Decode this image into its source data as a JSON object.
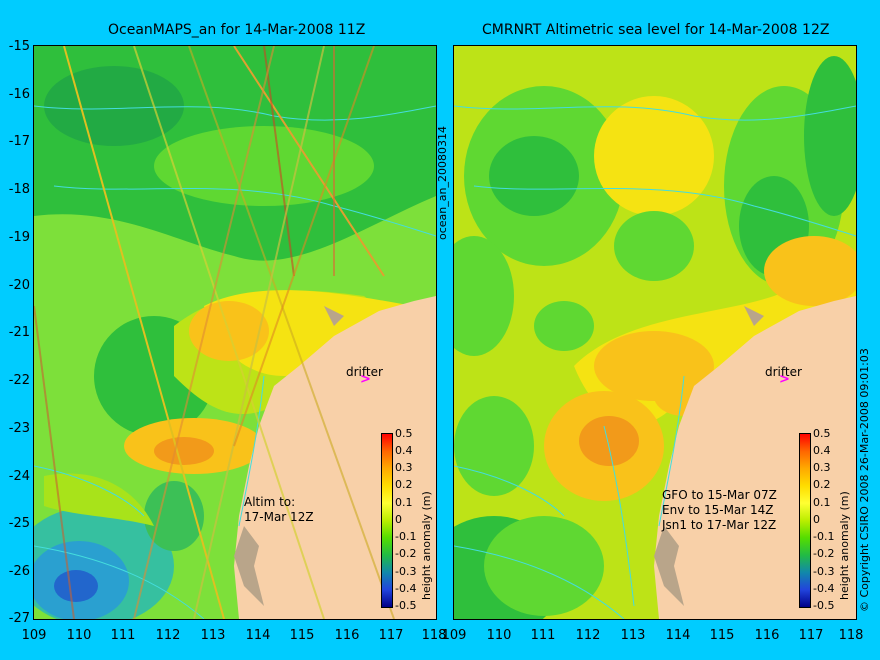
{
  "left_panel": {
    "title": "OceanMAPS_an for 14-Mar-2008 11Z",
    "altim_text": [
      "Altim to:",
      "17-Mar 12Z"
    ],
    "drifter_label": "drifter",
    "colorbar_label": "height anomaly (m)"
  },
  "right_panel": {
    "title": "CMRNRT Altimetric sea level  for 14-Mar-2008 12Z",
    "satellite_text": [
      "GFO to 15-Mar 07Z",
      "Env to 15-Mar 14Z",
      "Jsn1 to 17-Mar 12Z"
    ],
    "drifter_label": "drifter",
    "colorbar_label": "height anomaly (m)"
  },
  "side_label": "ocean_an_20080314",
  "copyright": "© Copyright CSIRO 2008   26-Mar-2008 09:01:03",
  "drifter_symbol": ">",
  "y_axis_ticks": [
    "-15",
    "-16",
    "-17",
    "-18",
    "-19",
    "-20",
    "-21",
    "-22",
    "-23",
    "-24",
    "-25",
    "-26",
    "-27"
  ],
  "x_axis_ticks": [
    "109",
    "110",
    "111",
    "112",
    "113",
    "114",
    "115",
    "116",
    "117",
    "118"
  ],
  "colorbar_ticks": [
    "0.5",
    "0.4",
    "0.3",
    "0.2",
    "0.1",
    "0",
    "-0.1",
    "-0.2",
    "-0.3",
    "-0.4",
    "-0.5"
  ],
  "colors": {
    "background": "#00ccff",
    "land": "#f8d0a8",
    "contour": "#44dddd",
    "drifter": "#ff00ff",
    "colorbar": [
      "#ff0000",
      "#ff6600",
      "#ffaa00",
      "#ffdd00",
      "#ffff33",
      "#bbee00",
      "#55dd00",
      "#22bb44",
      "#1188aa",
      "#2244dd",
      "#000088"
    ]
  }
}
